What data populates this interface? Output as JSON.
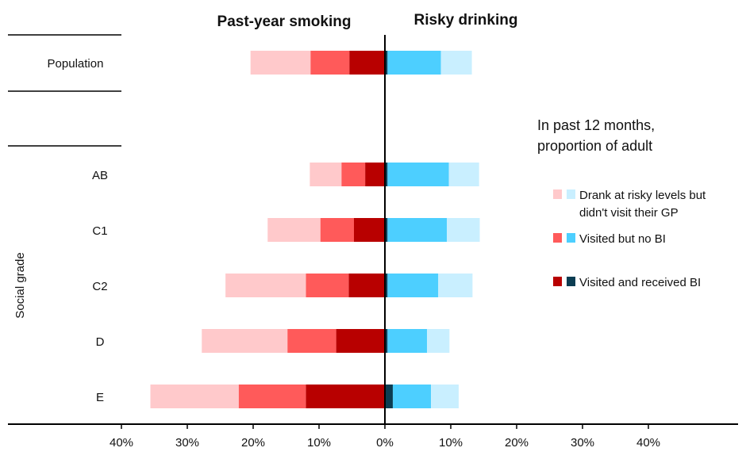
{
  "chart_data": {
    "type": "bar",
    "orientation": "horizontal-diverging-stacked",
    "panels": [
      {
        "title": "Past-year smoking",
        "direction": "left"
      },
      {
        "title": "Risky drinking",
        "direction": "right"
      }
    ],
    "ylabel": "Social grade",
    "categories": [
      "Population",
      "AB",
      "C1",
      "C2",
      "D",
      "E"
    ],
    "xlim": [
      -40,
      40
    ],
    "x_ticks": [
      "40%",
      "30%",
      "20%",
      "10%",
      "0%",
      "10%",
      "20%",
      "30%",
      "40%"
    ],
    "legend": {
      "title_lines": [
        "In past 12 months,",
        "proportion of adult"
      ],
      "position": "right",
      "entries": [
        {
          "lines": [
            "Drank at risky levels but",
            "didn't visit their GP"
          ],
          "colors": [
            "#ffc9cb",
            "#c9efff"
          ]
        },
        {
          "lines": [
            "Visited but no BI"
          ],
          "colors": [
            "#ff5a5a",
            "#4dcfff"
          ]
        },
        {
          "lines": [
            "Visited and received BI"
          ],
          "colors": [
            "#b80000",
            "#0b3d52"
          ]
        }
      ]
    },
    "series": [
      {
        "name": "Visited and received BI",
        "panel": "smoking",
        "color": "#b80000",
        "values": [
          5.4,
          3.0,
          4.7,
          5.5,
          7.4,
          12.0
        ]
      },
      {
        "name": "Visited but no BI",
        "panel": "smoking",
        "color": "#ff5a5a",
        "values": [
          5.9,
          3.6,
          5.1,
          6.5,
          7.4,
          10.2
        ]
      },
      {
        "name": "Drank at risky levels but didn't visit their GP",
        "panel": "smoking",
        "color": "#ffc9cb",
        "values": [
          9.1,
          4.8,
          8.0,
          12.2,
          13.0,
          13.4
        ]
      },
      {
        "name": "Visited and received BI",
        "panel": "drinking",
        "color": "#0b3d52",
        "values": [
          0.4,
          0.4,
          0.4,
          0.4,
          0.4,
          1.2
        ]
      },
      {
        "name": "Visited but no BI",
        "panel": "drinking",
        "color": "#4dcfff",
        "values": [
          8.1,
          9.3,
          9.0,
          7.7,
          6.0,
          5.8
        ]
      },
      {
        "name": "Drank at risky levels but didn't visit their GP",
        "panel": "drinking",
        "color": "#c9efff",
        "values": [
          4.7,
          4.6,
          5.0,
          5.2,
          3.4,
          4.2
        ]
      }
    ],
    "grid": false
  }
}
